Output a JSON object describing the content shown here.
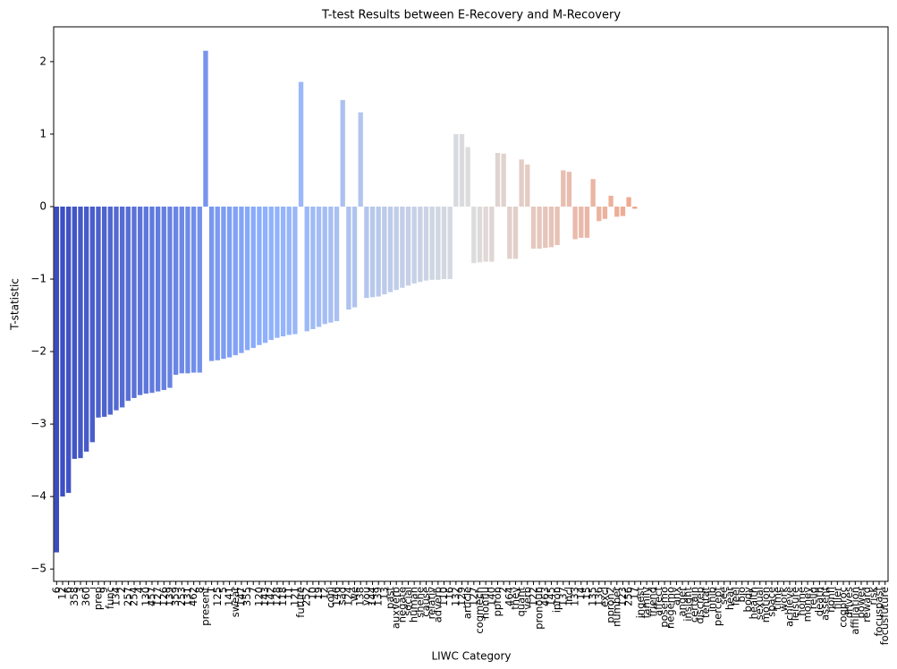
{
  "chart_data": {
    "type": "bar",
    "title": "T-test Results between  E-Recovery and M-Recovery",
    "x_label": "LIWC Category",
    "y_label": "T-statistic",
    "palette": "coolwarm",
    "categories": [
      "6",
      "12",
      "6",
      "358",
      "3",
      "360",
      "i",
      "prep",
      "9",
      "func",
      "134",
      "2",
      "257",
      "254",
      "4",
      "130",
      "457",
      "127",
      "126",
      "139",
      "359",
      "253",
      "131",
      "462",
      "8",
      "present",
      "1",
      "125",
      "5",
      "141",
      "swear",
      "147",
      "355",
      "7",
      "120",
      "143",
      "142",
      "128",
      "118",
      "11",
      "121",
      "future",
      "252",
      "10",
      "19",
      "12",
      "conj",
      "146",
      "sad",
      "124",
      "we",
      "138",
      "you",
      "144",
      "139",
      "13",
      "past",
      "auxverb",
      "negate",
      "social",
      "human",
      "shehe",
      "cause",
      "relativ",
      "adverb",
      "110",
      "16",
      "132",
      "129",
      "article",
      "127",
      "cogmech",
      "nonflu",
      "140",
      "ppron",
      "2",
      "464",
      "they",
      "quant",
      "verb",
      "122",
      "pronoun",
      "463",
      "145",
      "ipron",
      "137",
      "incl",
      "133",
      "14",
      "15",
      "135",
      "136",
      "excl",
      "ppron2",
      "number",
      "123",
      "256",
      "17",
      "ingest",
      "family",
      "friend",
      "affect",
      "posemo",
      "negemo",
      "anx",
      "anger",
      "insight",
      "certain",
      "discrep",
      "tentat",
      "inhib",
      "percept",
      "see",
      "hear",
      "feel",
      "bio",
      "body",
      "health",
      "sexual",
      "motion",
      "space",
      "time",
      "work",
      "achieve",
      "leisure",
      "home",
      "money",
      "relig",
      "death",
      "assent",
      "nonfl",
      "filler",
      "cogproc",
      "drives",
      "affiliation",
      "power",
      "reward",
      "risk",
      "focuspast",
      "focusfuture"
    ],
    "values": [
      -4.77,
      -4.0,
      -3.95,
      -3.48,
      -3.47,
      -3.38,
      -3.25,
      -2.91,
      -2.9,
      -2.87,
      -2.81,
      -2.77,
      -2.68,
      -2.64,
      -2.6,
      -2.58,
      -2.57,
      -2.55,
      -2.53,
      -2.5,
      -2.32,
      -2.3,
      -2.3,
      -2.29,
      -2.29,
      2.15,
      -2.13,
      -2.12,
      -2.1,
      -2.08,
      -2.05,
      -2.02,
      -1.98,
      -1.95,
      -1.91,
      -1.88,
      -1.84,
      -1.81,
      -1.79,
      -1.77,
      -1.76,
      1.72,
      -1.72,
      -1.69,
      -1.66,
      -1.62,
      -1.6,
      -1.58,
      1.47,
      -1.42,
      -1.39,
      1.3,
      -1.26,
      -1.25,
      -1.24,
      -1.21,
      -1.18,
      -1.15,
      -1.12,
      -1.09,
      -1.06,
      -1.04,
      -1.02,
      -1.01,
      -1.01,
      -1.0,
      -1.0,
      1.0,
      1.0,
      0.82,
      -0.78,
      -0.77,
      -0.76,
      -0.76,
      0.74,
      0.73,
      -0.72,
      -0.72,
      0.65,
      0.58,
      -0.58,
      -0.58,
      -0.57,
      -0.56,
      -0.53,
      0.5,
      0.48,
      -0.45,
      -0.43,
      -0.43,
      0.38,
      -0.2,
      -0.17,
      0.15,
      -0.14,
      -0.13,
      0.13,
      -0.03,
      null,
      null,
      null,
      null,
      null,
      null,
      null,
      null,
      null,
      null,
      null,
      null,
      null,
      null,
      null,
      null,
      null,
      null,
      null,
      null,
      null,
      null,
      null,
      null,
      null,
      null,
      null,
      null,
      null,
      null,
      null,
      null,
      null,
      null,
      null,
      null,
      null,
      null,
      null,
      null,
      null,
      null
    ],
    "ylim": [
      -5.17,
      2.48
    ],
    "yticks": [
      {
        "value": -5,
        "label": "−5"
      },
      {
        "value": -4,
        "label": "−4"
      },
      {
        "value": -3,
        "label": "−3"
      },
      {
        "value": -2,
        "label": "−2"
      },
      {
        "value": -1,
        "label": "−1"
      },
      0,
      1,
      2
    ]
  }
}
